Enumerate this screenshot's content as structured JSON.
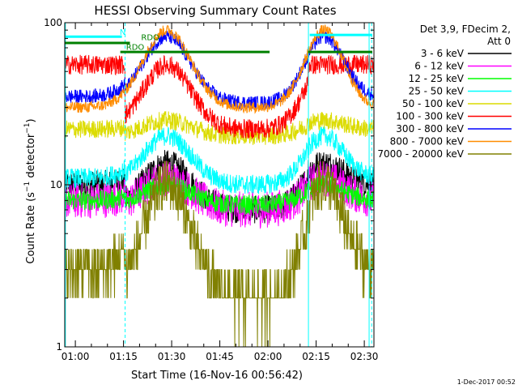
{
  "chart_data": {
    "type": "line",
    "title": "HESSI Observing Summary Count Rates",
    "xlabel": "Start Time (16-Nov-16 00:56:42)",
    "ylabel": "Count Rate (s⁻¹ detector⁻¹)",
    "ylabel_parts": {
      "main": "Count Rate (s",
      "sup1": "−1",
      "mid": " detector",
      "sup2": "−1",
      "end": ")"
    },
    "yscale": "log",
    "ylim": [
      1,
      100
    ],
    "xlim_minutes": [
      56.7,
      153.0
    ],
    "grid": false,
    "legend_position": "top-right",
    "y_ticks": [
      {
        "value": 1,
        "label": "1"
      },
      {
        "value": 10,
        "label": "10"
      },
      {
        "value": 100,
        "label": "100"
      }
    ],
    "x_ticks": [
      {
        "minutes": 60,
        "label": "01:00"
      },
      {
        "minutes": 75,
        "label": "01:15"
      },
      {
        "minutes": 90,
        "label": "01:30"
      },
      {
        "minutes": 105,
        "label": "01:45"
      },
      {
        "minutes": 120,
        "label": "02:00"
      },
      {
        "minutes": 135,
        "label": "02:15"
      },
      {
        "minutes": 150,
        "label": "02:30"
      }
    ],
    "legend_header": [
      "Det 3,9, FDecim 2,",
      "Att 0"
    ],
    "series": [
      {
        "name": "3 - 6 keV",
        "color": "#000000",
        "day": 10,
        "night": 7,
        "peak": 13.5,
        "noise": 0.2
      },
      {
        "name": "6 - 12 keV",
        "color": "#ff00ff",
        "day": 8,
        "night": 7,
        "peak": 11,
        "noise": 0.26
      },
      {
        "name": "12 - 25 keV",
        "color": "#00ff00",
        "day": 8,
        "night": 7.5,
        "peak": 10,
        "noise": 0.14
      },
      {
        "name": "25 - 50 keV",
        "color": "#00ffff",
        "day": 11,
        "night": 10,
        "peak": 20,
        "noise": 0.14
      },
      {
        "name": "50 - 100 keV",
        "color": "#dcdc00",
        "day": 22,
        "night": 20,
        "peak": 25,
        "noise": 0.13
      },
      {
        "name": "100 - 300 keV",
        "color": "#ff0000",
        "day": 55,
        "night": 22,
        "peak": 55,
        "noise": 0.14
      },
      {
        "name": "300 - 800 keV",
        "color": "#0000ff",
        "day": 35,
        "night": 32,
        "peak": 82,
        "noise": 0.1
      },
      {
        "name": "800 - 7000 keV",
        "color": "#ff8c00",
        "day": 30,
        "night": 30,
        "peak": 90,
        "noise": 0.08
      },
      {
        "name": "7000 - 20000 keV",
        "color": "#808000",
        "day": 3,
        "night": 2,
        "peak": 10,
        "noise": 0.35
      }
    ],
    "saa_intervals_minutes": [
      [
        56.7,
        75.5
      ],
      [
        132.5,
        153.0
      ]
    ],
    "dashed_markers_minutes": [
      75.5,
      152.3
    ],
    "solid_markers_minutes": [
      56.9,
      132.6,
      151.5
    ],
    "flag_bars": [
      {
        "label": "RDO",
        "color": "#008000",
        "x0": 56.7,
        "x1": 77.0,
        "y": 75,
        "label_x": 80.5,
        "label_y": 78
      },
      {
        "label": "RDO",
        "color": "#008000",
        "x0": 74.0,
        "x1": 120.5,
        "y": 66,
        "label_x": 75.8,
        "label_y": 68
      },
      {
        "label": "N",
        "color": "#00ffff",
        "x0": 56.7,
        "x1": 74.5,
        "y": 82,
        "label_x": 73.8,
        "label_y": 84
      },
      {
        "label": "",
        "color": "#008000",
        "x0": 132.5,
        "x1": 152.5,
        "y": 66,
        "label_x": 0,
        "label_y": 0
      },
      {
        "label": "",
        "color": "#00ffff",
        "x0": 133.0,
        "x1": 152.5,
        "y": 84,
        "label_x": 0,
        "label_y": 0
      }
    ],
    "humps_minutes": [
      {
        "center": 88.5,
        "width": 10.5
      },
      {
        "center": 137.5,
        "width": 8.5
      }
    ],
    "footer_date": "1-Dec-2017 00:52"
  }
}
